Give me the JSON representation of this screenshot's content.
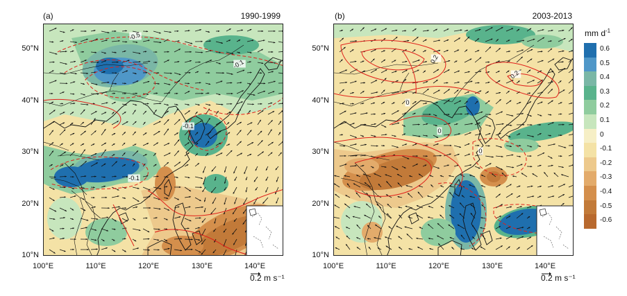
{
  "panels": [
    {
      "label": "(a)",
      "period": "1990-1999"
    },
    {
      "label": "(b)",
      "period": "2003-2013"
    }
  ],
  "lat_ticks": [
    "50°N",
    "40°N",
    "30°N",
    "20°N",
    "10°N"
  ],
  "lon_ticks": [
    "100°E",
    "110°E",
    "120°E",
    "130°E",
    "140°E"
  ],
  "reference_vector": "0.2 m s⁻¹",
  "colorbar": {
    "unit_base": "mm d",
    "unit_exp": "-1",
    "labels": [
      "0.6",
      "0.5",
      "0.4",
      "0.3",
      "0.2",
      "0.1",
      "0",
      "-0.1",
      "-0.2",
      "-0.3",
      "-0.4",
      "-0.5",
      "-0.6"
    ],
    "colors": [
      "#1f6fae",
      "#4f97c8",
      "#7ab7a6",
      "#59b38c",
      "#8fcc9e",
      "#c7e6bd",
      "#f6efc6",
      "#f4e2a6",
      "#edc98c",
      "#e3ab6b",
      "#d48f4c",
      "#c27a39",
      "#b8692e"
    ]
  },
  "contour_labels": {
    "a": [
      "-0.5",
      "-0.1",
      "-0.1",
      "-0.1"
    ],
    "b": [
      "0.2",
      "0.2",
      "0",
      "0",
      "0"
    ]
  },
  "colors": {
    "contour": "#e0201b",
    "coast": "#111111",
    "vector": "#111111"
  }
}
